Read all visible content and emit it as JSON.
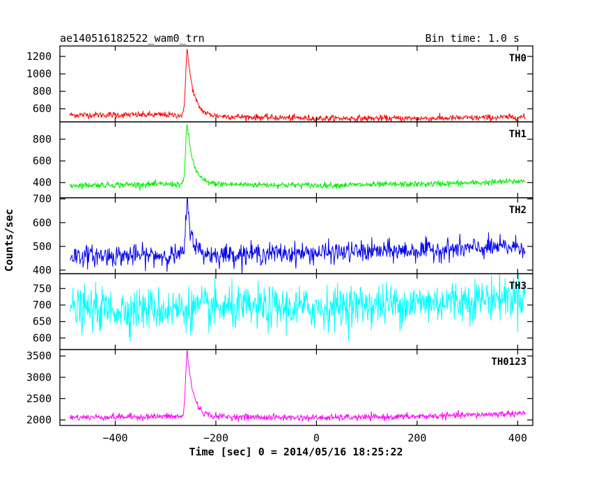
{
  "header": {
    "left": "ae140516182522_wam0_trn",
    "right": "Bin time: 1.0 s"
  },
  "chart_data": {
    "type": "line",
    "xlabel": "Time [sec] 0 = 2014/05/16 18:25:22",
    "ylabel": "Counts/sec",
    "xlim": [
      -510,
      430
    ],
    "xticks": [
      -400,
      -200,
      0,
      200,
      400
    ],
    "xtick_labels": [
      "−400",
      "−200",
      "0",
      "200",
      "400"
    ],
    "panels": [
      {
        "name": "TH0",
        "color": "#ff0000",
        "ylim": [
          450,
          1320
        ],
        "yticks": [
          600,
          800,
          1000,
          1200
        ],
        "baseline": [
          [
            -490,
            530
          ],
          [
            -300,
            530
          ],
          [
            -200,
            515
          ],
          [
            -100,
            500
          ],
          [
            0,
            490
          ],
          [
            100,
            490
          ],
          [
            200,
            490
          ],
          [
            300,
            495
          ],
          [
            415,
            505
          ]
        ],
        "noise": 18,
        "peak": {
          "center": -257,
          "amplitude": 770,
          "rise": 3,
          "decay": 12
        },
        "x_start": -490,
        "x_end": 415
      },
      {
        "name": "TH1",
        "color": "#00ee00",
        "ylim": [
          260,
          960
        ],
        "yticks": [
          400,
          600,
          800
        ],
        "baseline": [
          [
            -490,
            375
          ],
          [
            -300,
            385
          ],
          [
            -200,
            385
          ],
          [
            -100,
            380
          ],
          [
            0,
            375
          ],
          [
            100,
            380
          ],
          [
            200,
            385
          ],
          [
            300,
            395
          ],
          [
            415,
            415
          ]
        ],
        "noise": 14,
        "peak": {
          "center": -257,
          "amplitude": 560,
          "rise": 3,
          "decay": 12
        },
        "x_start": -490,
        "x_end": 415
      },
      {
        "name": "TH2",
        "color": "#0000ee",
        "ylim": [
          385,
          705
        ],
        "yticks": [
          400,
          500,
          600,
          700
        ],
        "baseline": [
          [
            -490,
            460
          ],
          [
            -300,
            462
          ],
          [
            -200,
            465
          ],
          [
            -100,
            470
          ],
          [
            0,
            472
          ],
          [
            100,
            478
          ],
          [
            200,
            482
          ],
          [
            300,
            490
          ],
          [
            415,
            500
          ]
        ],
        "noise": 22,
        "peak": {
          "center": -257,
          "amplitude": 215,
          "rise": 3,
          "decay": 10
        },
        "x_start": -490,
        "x_end": 415
      },
      {
        "name": "TH3",
        "color": "#00ffff",
        "ylim": [
          565,
          795
        ],
        "yticks": [
          600,
          650,
          700,
          750
        ],
        "baseline": [
          [
            -490,
            685
          ],
          [
            -300,
            688
          ],
          [
            -200,
            690
          ],
          [
            -100,
            690
          ],
          [
            0,
            692
          ],
          [
            100,
            700
          ],
          [
            200,
            705
          ],
          [
            300,
            715
          ],
          [
            415,
            728
          ]
        ],
        "noise": 32,
        "peak": {
          "center": -257,
          "amplitude": 0,
          "rise": 3,
          "decay": 10
        },
        "x_start": -490,
        "x_end": 415
      },
      {
        "name": "TH0123",
        "color": "#ff00ff",
        "ylim": [
          1870,
          3650
        ],
        "yticks": [
          2000,
          2500,
          3000,
          3500
        ],
        "baseline": [
          [
            -490,
            2060
          ],
          [
            -300,
            2080
          ],
          [
            -200,
            2075
          ],
          [
            -100,
            2060
          ],
          [
            0,
            2050
          ],
          [
            100,
            2060
          ],
          [
            200,
            2080
          ],
          [
            300,
            2110
          ],
          [
            415,
            2160
          ]
        ],
        "noise": 38,
        "peak": {
          "center": -257,
          "amplitude": 1550,
          "rise": 3,
          "decay": 12
        },
        "x_start": -490,
        "x_end": 415
      }
    ]
  }
}
